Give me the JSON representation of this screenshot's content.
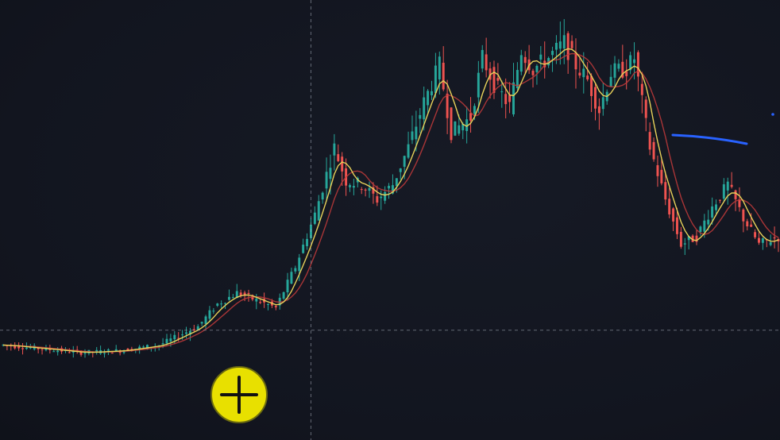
{
  "theme": {
    "background": "#131722",
    "bullish": "#26a69a",
    "bearish": "#ef5350",
    "fast_ma": "#e8d25a",
    "slow_ma": "#c23b3b",
    "crosshair": "#9aa0ad",
    "drawing": "#2962ff",
    "cursor_fill": "#e8e000"
  },
  "tools": {
    "cursor_icon": "crosshair-plus-icon",
    "drawn_line": "trend-line"
  },
  "chart_data": {
    "type": "candlestick",
    "title": "",
    "xlabel": "",
    "ylabel": "",
    "grid": false,
    "legend": "none",
    "ylim": [
      0,
      100
    ],
    "x_count": 200,
    "indicators": [
      "moving-average-fast",
      "moving-average-slow"
    ],
    "crosshair": {
      "x_index": 79,
      "price": 19
    },
    "close_trace": [
      [
        0,
        15
      ],
      [
        20,
        13
      ],
      [
        30,
        13.5
      ],
      [
        40,
        15
      ],
      [
        50,
        20
      ],
      [
        55,
        26
      ],
      [
        60,
        29
      ],
      [
        65,
        27
      ],
      [
        70,
        25
      ],
      [
        75,
        36
      ],
      [
        80,
        50
      ],
      [
        85,
        68
      ],
      [
        88,
        59
      ],
      [
        92,
        58
      ],
      [
        96,
        54
      ],
      [
        100,
        58
      ],
      [
        104,
        68
      ],
      [
        108,
        80
      ],
      [
        112,
        90
      ],
      [
        115,
        72
      ],
      [
        120,
        76
      ],
      [
        123,
        92
      ],
      [
        126,
        85
      ],
      [
        130,
        79
      ],
      [
        133,
        94
      ],
      [
        136,
        89
      ],
      [
        140,
        92
      ],
      [
        144,
        96
      ],
      [
        147,
        90
      ],
      [
        150,
        86
      ],
      [
        153,
        78
      ],
      [
        156,
        88
      ],
      [
        160,
        89
      ],
      [
        162,
        92
      ],
      [
        166,
        68
      ],
      [
        170,
        54
      ],
      [
        174,
        42
      ],
      [
        178,
        44
      ],
      [
        182,
        52
      ],
      [
        186,
        58
      ],
      [
        190,
        49
      ],
      [
        194,
        42
      ],
      [
        199,
        44
      ]
    ]
  }
}
